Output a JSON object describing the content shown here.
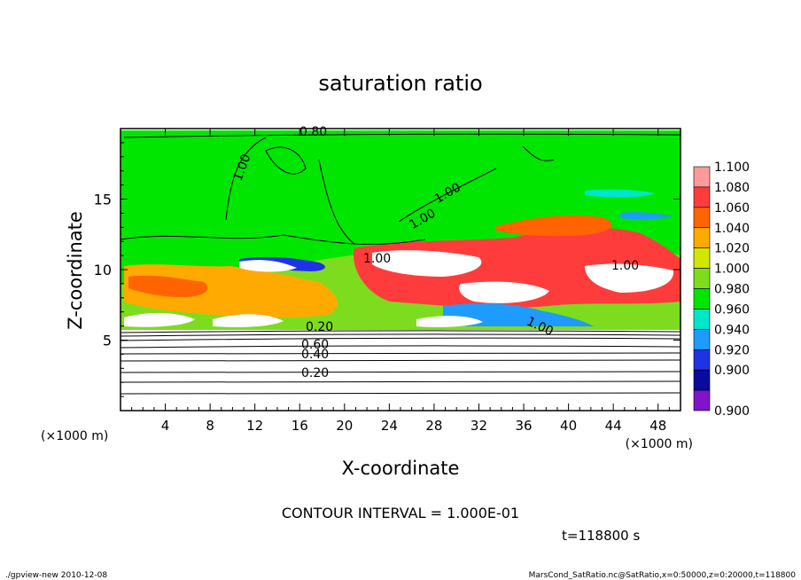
{
  "chart_data": {
    "type": "heatmap",
    "title": "saturation ratio",
    "xlabel": "X-coordinate",
    "ylabel": "Z-coordinate",
    "x_unit": "(×1000 m)",
    "y_unit": "(×1000 m)",
    "xlim": [
      0,
      50
    ],
    "ylim": [
      0,
      20
    ],
    "x_ticks": [
      4,
      8,
      12,
      16,
      20,
      24,
      28,
      32,
      36,
      40,
      44,
      48
    ],
    "y_ticks": [
      5,
      10,
      15
    ],
    "colorbar": {
      "levels": [
        {
          "value": "1.100",
          "color": "#ff9a9a"
        },
        {
          "value": "1.080",
          "color": "#ff3c3c"
        },
        {
          "value": "1.060",
          "color": "#ff6400"
        },
        {
          "value": "1.040",
          "color": "#ffaa00"
        },
        {
          "value": "1.020",
          "color": "#d2e600"
        },
        {
          "value": "1.000",
          "color": "#7ddc1e"
        },
        {
          "value": "0.980",
          "color": "#00e600"
        },
        {
          "value": "0.960",
          "color": "#00e6c8"
        },
        {
          "value": "0.940",
          "color": "#1e9bff"
        },
        {
          "value": "0.920",
          "color": "#1e32e6"
        },
        {
          "value": "0.900",
          "color": "#0a0aa0"
        },
        {
          "value": "",
          "color": "#7f14c8"
        }
      ]
    },
    "contour_labels": [
      "0.80",
      "1.00",
      "1.00",
      "1.00",
      "1.00",
      "1.00",
      "1.00",
      "0.20",
      "0.60",
      "0.40",
      "0.20"
    ],
    "contour_interval": "CONTOUR INTERVAL = 1.000E-01",
    "time_label": "t=118800 s"
  },
  "footer": {
    "left": "./gpview-new  2010-12-08",
    "right": "MarsCond_SatRatio.nc@SatRatio,x=0:50000,z=0:20000,t=118800"
  }
}
